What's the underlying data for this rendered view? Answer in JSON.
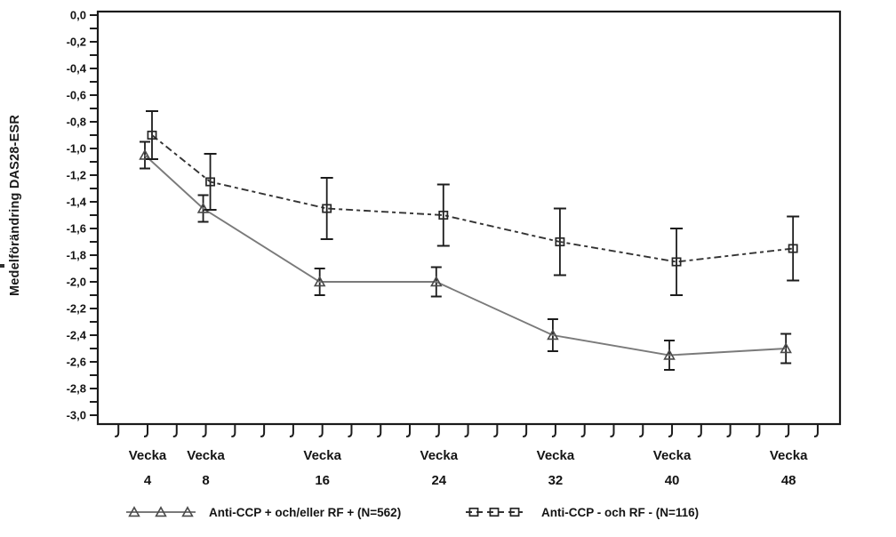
{
  "figure": {
    "background": "#ffffff",
    "y_axis_title": "Medelförändring DAS28-ESR",
    "x_tick_word": "Vecka"
  },
  "chart_data": {
    "type": "line",
    "title": "",
    "xlabel": "Vecka",
    "ylabel": "Medelförändring DAS28-ESR",
    "x": [
      4,
      8,
      16,
      24,
      32,
      40,
      48
    ],
    "x_tick_labels": [
      "Vecka 4",
      "Vecka 8",
      "Vecka 16",
      "Vecka 24",
      "Vecka 32",
      "Vecka 40",
      "Vecka 48"
    ],
    "xlim": [
      2,
      50
    ],
    "x_minor_tick_weeks": [
      2,
      4,
      6,
      8,
      10,
      12,
      14,
      16,
      18,
      20,
      22,
      24,
      26,
      28,
      30,
      32,
      34,
      36,
      38,
      40,
      42,
      44,
      46,
      48,
      50
    ],
    "ylim": [
      -3.0,
      0.0
    ],
    "y_tick_labels": [
      "0,0",
      "-0,2",
      "-0,4",
      "-0,6",
      "-0,8",
      "-1,0",
      "-1,2",
      "-1,4",
      "-1,6",
      "-1,8",
      "-2,0",
      "-2,2",
      "-2,4",
      "-2,6",
      "-2,8",
      "-3,0"
    ],
    "y_minor_tick_step": 0.1,
    "grid": false,
    "legend_position": "bottom",
    "frame_color": "#1a1a1a",
    "series": [
      {
        "name": "Anti-CCP + och/eller RF + (N=562)",
        "marker": "triangle",
        "line_style": "solid",
        "line_color": "#7a7a7a",
        "marker_color": "#4a4a4a",
        "error_color": "#1c1c1c",
        "values": [
          -1.05,
          -1.45,
          -2.0,
          -2.0,
          -2.4,
          -2.55,
          -2.5
        ],
        "error_minus": [
          0.1,
          0.1,
          0.1,
          0.11,
          0.12,
          0.11,
          0.11
        ],
        "error_plus": [
          0.1,
          0.1,
          0.1,
          0.11,
          0.12,
          0.11,
          0.11
        ]
      },
      {
        "name": "Anti-CCP - och RF - (N=116)",
        "marker": "square",
        "line_style": "dashed",
        "line_color": "#333333",
        "marker_color": "#262626",
        "error_color": "#1c1c1c",
        "values": [
          -0.9,
          -1.25,
          -1.45,
          -1.5,
          -1.7,
          -1.85,
          -1.75
        ],
        "error_minus": [
          0.18,
          0.21,
          0.23,
          0.23,
          0.25,
          0.25,
          0.24
        ],
        "error_plus": [
          0.18,
          0.21,
          0.23,
          0.23,
          0.25,
          0.25,
          0.24
        ]
      }
    ]
  },
  "legend": {
    "items": [
      {
        "label": "Anti-CCP + och/eller RF + (N=562)",
        "marker": "triangle"
      },
      {
        "label": "Anti-CCP - och RF - (N=116)",
        "marker": "square"
      }
    ]
  }
}
